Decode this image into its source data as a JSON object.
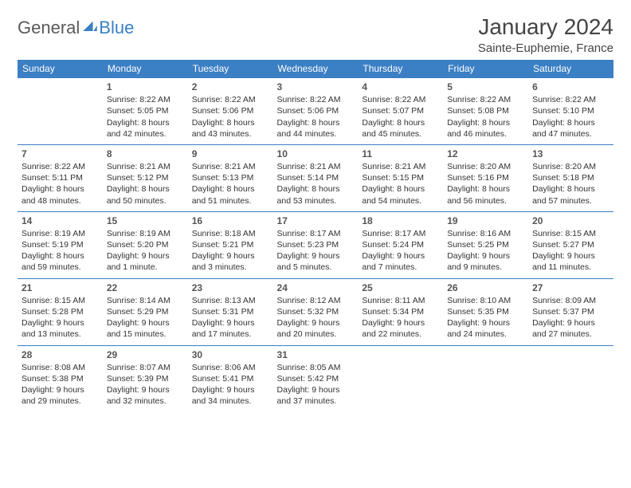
{
  "logo": {
    "text_gray": "General",
    "text_blue": "Blue"
  },
  "title": "January 2024",
  "location": "Sainte-Euphemie, France",
  "colors": {
    "header_bg": "#3b7fc4",
    "header_text": "#ffffff",
    "border": "#3b7fc4",
    "body_text": "#333333",
    "logo_gray": "#5a5a5a",
    "logo_blue": "#3b7fc4"
  },
  "daynames": [
    "Sunday",
    "Monday",
    "Tuesday",
    "Wednesday",
    "Thursday",
    "Friday",
    "Saturday"
  ],
  "weeks": [
    [
      null,
      {
        "n": "1",
        "sr": "Sunrise: 8:22 AM",
        "ss": "Sunset: 5:05 PM",
        "d1": "Daylight: 8 hours",
        "d2": "and 42 minutes."
      },
      {
        "n": "2",
        "sr": "Sunrise: 8:22 AM",
        "ss": "Sunset: 5:06 PM",
        "d1": "Daylight: 8 hours",
        "d2": "and 43 minutes."
      },
      {
        "n": "3",
        "sr": "Sunrise: 8:22 AM",
        "ss": "Sunset: 5:06 PM",
        "d1": "Daylight: 8 hours",
        "d2": "and 44 minutes."
      },
      {
        "n": "4",
        "sr": "Sunrise: 8:22 AM",
        "ss": "Sunset: 5:07 PM",
        "d1": "Daylight: 8 hours",
        "d2": "and 45 minutes."
      },
      {
        "n": "5",
        "sr": "Sunrise: 8:22 AM",
        "ss": "Sunset: 5:08 PM",
        "d1": "Daylight: 8 hours",
        "d2": "and 46 minutes."
      },
      {
        "n": "6",
        "sr": "Sunrise: 8:22 AM",
        "ss": "Sunset: 5:10 PM",
        "d1": "Daylight: 8 hours",
        "d2": "and 47 minutes."
      }
    ],
    [
      {
        "n": "7",
        "sr": "Sunrise: 8:22 AM",
        "ss": "Sunset: 5:11 PM",
        "d1": "Daylight: 8 hours",
        "d2": "and 48 minutes."
      },
      {
        "n": "8",
        "sr": "Sunrise: 8:21 AM",
        "ss": "Sunset: 5:12 PM",
        "d1": "Daylight: 8 hours",
        "d2": "and 50 minutes."
      },
      {
        "n": "9",
        "sr": "Sunrise: 8:21 AM",
        "ss": "Sunset: 5:13 PM",
        "d1": "Daylight: 8 hours",
        "d2": "and 51 minutes."
      },
      {
        "n": "10",
        "sr": "Sunrise: 8:21 AM",
        "ss": "Sunset: 5:14 PM",
        "d1": "Daylight: 8 hours",
        "d2": "and 53 minutes."
      },
      {
        "n": "11",
        "sr": "Sunrise: 8:21 AM",
        "ss": "Sunset: 5:15 PM",
        "d1": "Daylight: 8 hours",
        "d2": "and 54 minutes."
      },
      {
        "n": "12",
        "sr": "Sunrise: 8:20 AM",
        "ss": "Sunset: 5:16 PM",
        "d1": "Daylight: 8 hours",
        "d2": "and 56 minutes."
      },
      {
        "n": "13",
        "sr": "Sunrise: 8:20 AM",
        "ss": "Sunset: 5:18 PM",
        "d1": "Daylight: 8 hours",
        "d2": "and 57 minutes."
      }
    ],
    [
      {
        "n": "14",
        "sr": "Sunrise: 8:19 AM",
        "ss": "Sunset: 5:19 PM",
        "d1": "Daylight: 8 hours",
        "d2": "and 59 minutes."
      },
      {
        "n": "15",
        "sr": "Sunrise: 8:19 AM",
        "ss": "Sunset: 5:20 PM",
        "d1": "Daylight: 9 hours",
        "d2": "and 1 minute."
      },
      {
        "n": "16",
        "sr": "Sunrise: 8:18 AM",
        "ss": "Sunset: 5:21 PM",
        "d1": "Daylight: 9 hours",
        "d2": "and 3 minutes."
      },
      {
        "n": "17",
        "sr": "Sunrise: 8:17 AM",
        "ss": "Sunset: 5:23 PM",
        "d1": "Daylight: 9 hours",
        "d2": "and 5 minutes."
      },
      {
        "n": "18",
        "sr": "Sunrise: 8:17 AM",
        "ss": "Sunset: 5:24 PM",
        "d1": "Daylight: 9 hours",
        "d2": "and 7 minutes."
      },
      {
        "n": "19",
        "sr": "Sunrise: 8:16 AM",
        "ss": "Sunset: 5:25 PM",
        "d1": "Daylight: 9 hours",
        "d2": "and 9 minutes."
      },
      {
        "n": "20",
        "sr": "Sunrise: 8:15 AM",
        "ss": "Sunset: 5:27 PM",
        "d1": "Daylight: 9 hours",
        "d2": "and 11 minutes."
      }
    ],
    [
      {
        "n": "21",
        "sr": "Sunrise: 8:15 AM",
        "ss": "Sunset: 5:28 PM",
        "d1": "Daylight: 9 hours",
        "d2": "and 13 minutes."
      },
      {
        "n": "22",
        "sr": "Sunrise: 8:14 AM",
        "ss": "Sunset: 5:29 PM",
        "d1": "Daylight: 9 hours",
        "d2": "and 15 minutes."
      },
      {
        "n": "23",
        "sr": "Sunrise: 8:13 AM",
        "ss": "Sunset: 5:31 PM",
        "d1": "Daylight: 9 hours",
        "d2": "and 17 minutes."
      },
      {
        "n": "24",
        "sr": "Sunrise: 8:12 AM",
        "ss": "Sunset: 5:32 PM",
        "d1": "Daylight: 9 hours",
        "d2": "and 20 minutes."
      },
      {
        "n": "25",
        "sr": "Sunrise: 8:11 AM",
        "ss": "Sunset: 5:34 PM",
        "d1": "Daylight: 9 hours",
        "d2": "and 22 minutes."
      },
      {
        "n": "26",
        "sr": "Sunrise: 8:10 AM",
        "ss": "Sunset: 5:35 PM",
        "d1": "Daylight: 9 hours",
        "d2": "and 24 minutes."
      },
      {
        "n": "27",
        "sr": "Sunrise: 8:09 AM",
        "ss": "Sunset: 5:37 PM",
        "d1": "Daylight: 9 hours",
        "d2": "and 27 minutes."
      }
    ],
    [
      {
        "n": "28",
        "sr": "Sunrise: 8:08 AM",
        "ss": "Sunset: 5:38 PM",
        "d1": "Daylight: 9 hours",
        "d2": "and 29 minutes."
      },
      {
        "n": "29",
        "sr": "Sunrise: 8:07 AM",
        "ss": "Sunset: 5:39 PM",
        "d1": "Daylight: 9 hours",
        "d2": "and 32 minutes."
      },
      {
        "n": "30",
        "sr": "Sunrise: 8:06 AM",
        "ss": "Sunset: 5:41 PM",
        "d1": "Daylight: 9 hours",
        "d2": "and 34 minutes."
      },
      {
        "n": "31",
        "sr": "Sunrise: 8:05 AM",
        "ss": "Sunset: 5:42 PM",
        "d1": "Daylight: 9 hours",
        "d2": "and 37 minutes."
      },
      null,
      null,
      null
    ]
  ]
}
